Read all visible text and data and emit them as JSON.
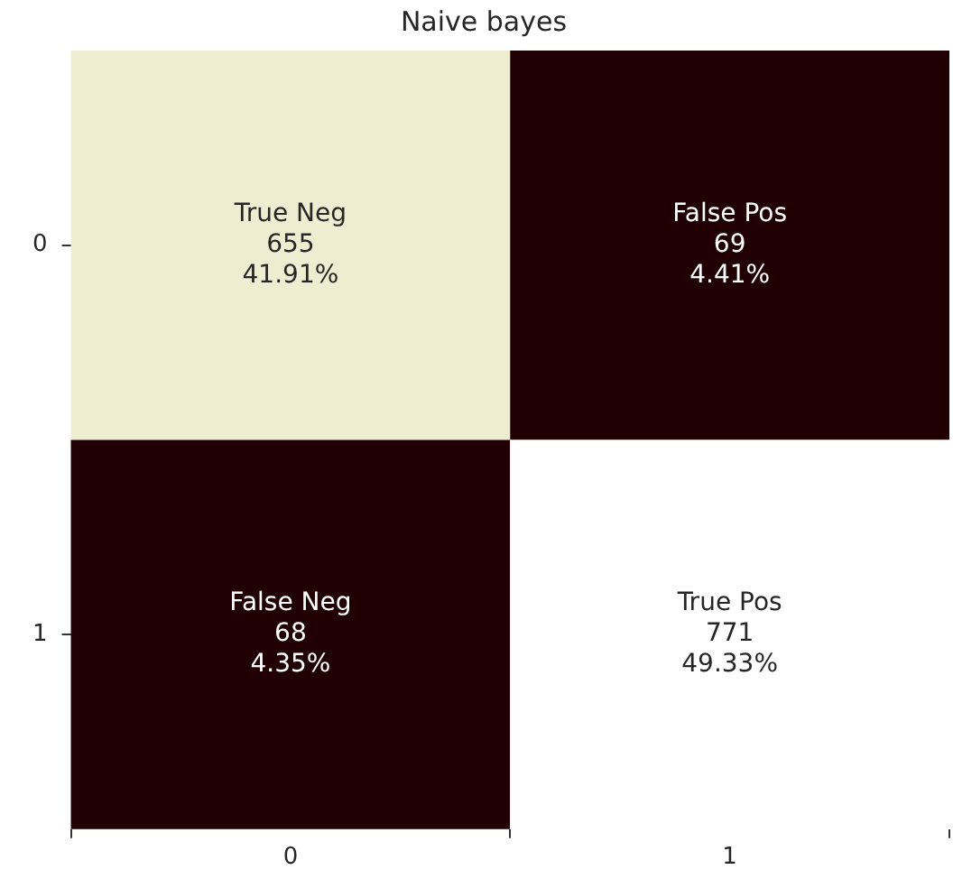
{
  "chart_data": {
    "type": "heatmap",
    "title": "Naive bayes",
    "categories": [
      "0",
      "1"
    ],
    "y_categories": [
      "0",
      "1"
    ],
    "cells": [
      [
        655,
        69
      ],
      [
        68,
        771
      ]
    ],
    "data_labels": true,
    "annotations": [
      "True Neg",
      "41.91%",
      "False Pos",
      "4.41%",
      "False Neg",
      "4.35%",
      "True Pos",
      "49.33%"
    ],
    "colors": [
      "#efedd1",
      "#210003",
      "#210003",
      "#ffffff"
    ]
  }
}
